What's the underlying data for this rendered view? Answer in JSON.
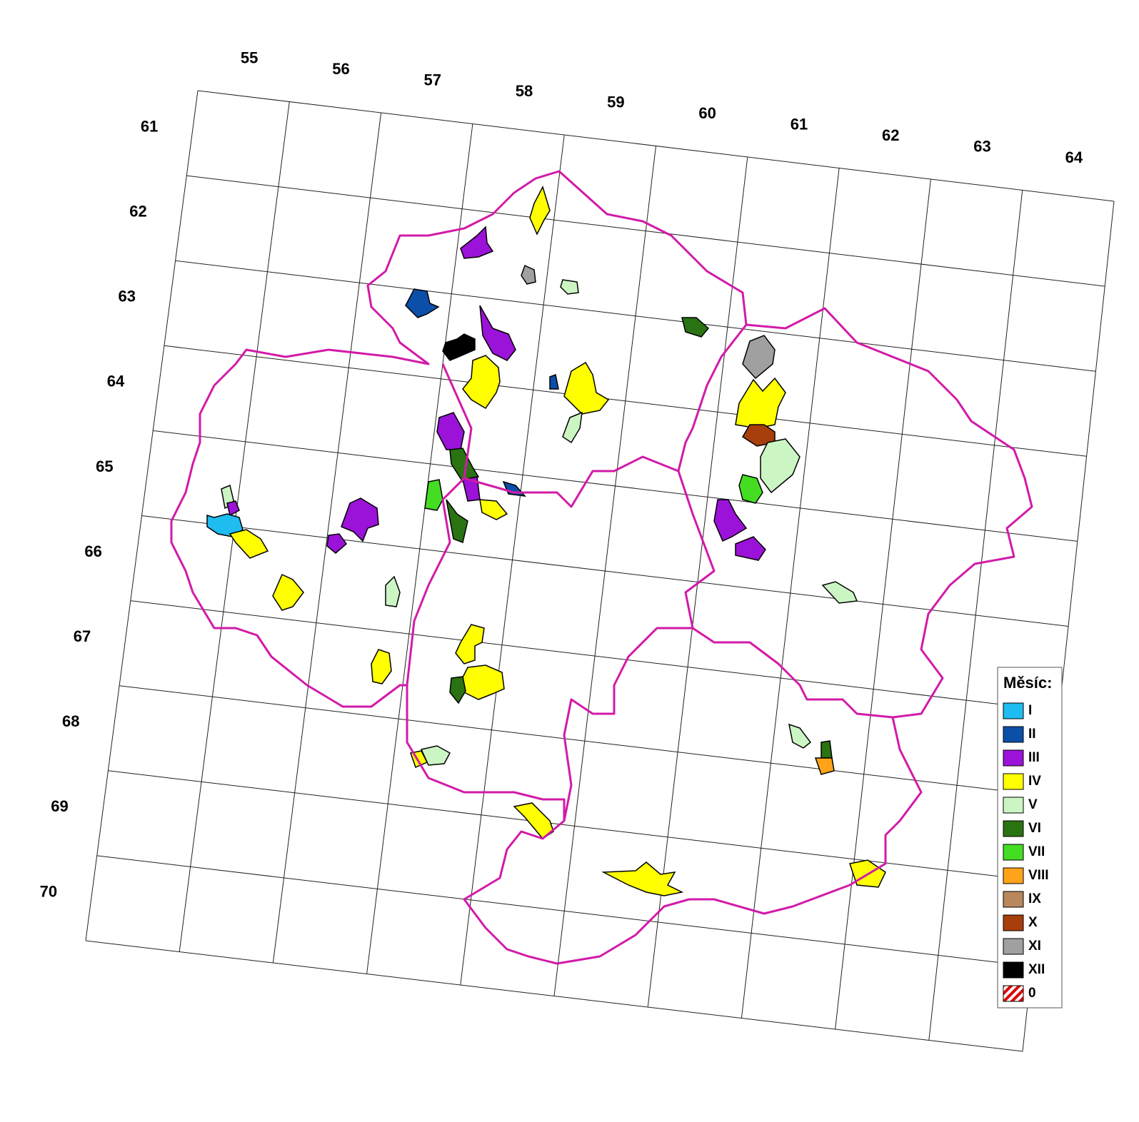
{
  "columns": [
    "55",
    "56",
    "57",
    "58",
    "59",
    "60",
    "61",
    "62",
    "63",
    "64"
  ],
  "rows": [
    "61",
    "62",
    "63",
    "64",
    "65",
    "66",
    "67",
    "68",
    "69",
    "70"
  ],
  "legend": {
    "title": "Měsíc:",
    "items": [
      {
        "label": "I",
        "color": "#1ebcf0"
      },
      {
        "label": "II",
        "color": "#0b4fa8"
      },
      {
        "label": "III",
        "color": "#9b12d8"
      },
      {
        "label": "IV",
        "color": "#ffff00"
      },
      {
        "label": "V",
        "color": "#ccf5c4"
      },
      {
        "label": "VI",
        "color": "#2a7312"
      },
      {
        "label": "VII",
        "color": "#44dd22"
      },
      {
        "label": "VIII",
        "color": "#ffa31a"
      },
      {
        "label": "IX",
        "color": "#b8875c"
      },
      {
        "label": "X",
        "color": "#a83e0c"
      },
      {
        "label": "XI",
        "color": "#a0a0a0"
      },
      {
        "label": "XII",
        "color": "#000000"
      },
      {
        "label": "0",
        "color": "#e00000",
        "hatch": true
      }
    ]
  }
}
